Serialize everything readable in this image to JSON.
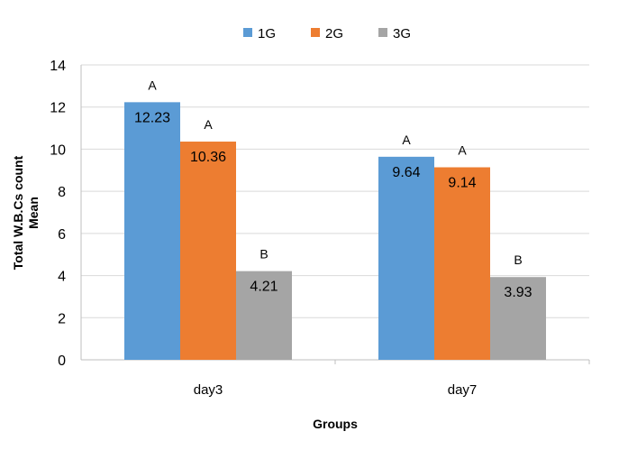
{
  "chart_data": {
    "type": "bar",
    "categories": [
      "day3",
      "day7"
    ],
    "series": [
      {
        "name": "1G",
        "values": [
          12.23,
          9.64
        ],
        "letters": [
          "A",
          "A"
        ],
        "color": "#5B9BD5"
      },
      {
        "name": "2G",
        "values": [
          10.36,
          9.14
        ],
        "letters": [
          "A",
          "A"
        ],
        "color": "#ED7D31"
      },
      {
        "name": "3G",
        "values": [
          4.21,
          3.93
        ],
        "letters": [
          "B",
          "B"
        ],
        "color": "#A5A5A5"
      }
    ],
    "xlabel": "Groups",
    "ylabel_line1": "Total W.B.Cs count",
    "ylabel_line2": "Mean",
    "ylim": [
      0,
      14
    ],
    "yticks": [
      0,
      2,
      4,
      6,
      8,
      10,
      12,
      14
    ],
    "grid": true,
    "legend_position": "top"
  }
}
